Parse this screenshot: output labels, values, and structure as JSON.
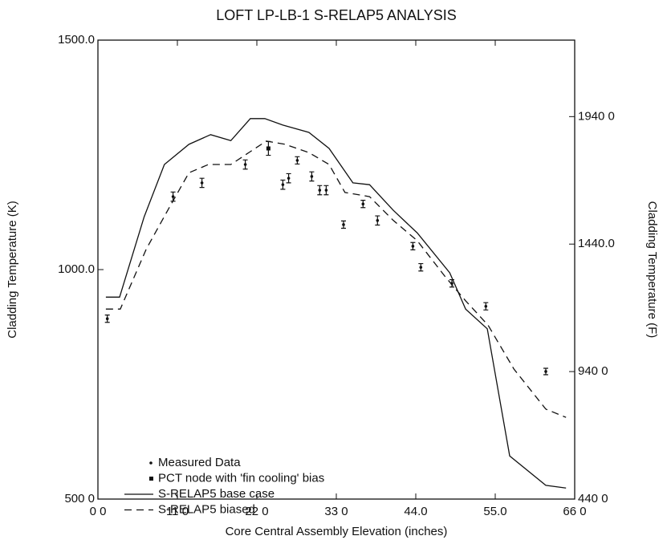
{
  "chart_data": {
    "type": "line",
    "title": "LOFT LP-LB-1 S-RELAP5 ANALYSIS",
    "xlabel": "Core Central Assembly Elevation (inches)",
    "ylabel": "Cladding Temperature (K)",
    "y2label": "Cladding Temperature (F)",
    "xlim": [
      0,
      66
    ],
    "ylim": [
      500,
      1500
    ],
    "y2lim": [
      440,
      2240
    ],
    "xticks": [
      {
        "value": 0,
        "label": "0 0"
      },
      {
        "value": 11,
        "label": "11 0"
      },
      {
        "value": 22,
        "label": "22 0"
      },
      {
        "value": 33,
        "label": "33 0"
      },
      {
        "value": 44,
        "label": "44.0"
      },
      {
        "value": 55,
        "label": "55.0"
      },
      {
        "value": 66,
        "label": "66 0"
      }
    ],
    "yticks": [
      {
        "value": 500,
        "label": "500 0"
      },
      {
        "value": 1000,
        "label": "1000.0"
      },
      {
        "value": 1500,
        "label": "1500.0"
      }
    ],
    "y2ticks": [
      {
        "value": 440,
        "label": "440 0"
      },
      {
        "value": 940,
        "label": "940 0"
      },
      {
        "value": 1440,
        "label": "1440.0"
      },
      {
        "value": 1940,
        "label": "1940 0"
      }
    ],
    "legend": "lower left",
    "series": [
      {
        "name": "Measured Data",
        "style": "errorbar",
        "color": "#111",
        "x": [
          1.3,
          10.4,
          14.4,
          20.4,
          25.6,
          26.4,
          27.6,
          29.6,
          30.7,
          31.6,
          34,
          36.7,
          38.7,
          43.6,
          44.7,
          49,
          53.7,
          62
        ],
        "values": [
          893,
          1159,
          1189,
          1229,
          1185,
          1199,
          1238,
          1203,
          1173,
          1173,
          1098,
          1143,
          1107,
          1051,
          1005,
          970,
          920,
          778
        ],
        "errors": [
          8,
          10,
          10,
          10,
          10,
          10,
          8,
          10,
          10,
          10,
          8,
          8,
          10,
          8,
          8,
          8,
          8,
          7
        ]
      },
      {
        "name": "PCT node with 'fin cooling' bias",
        "style": "square",
        "color": "#111",
        "x": [
          23.6
        ],
        "values": [
          1264
        ],
        "errors": [
          15
        ]
      },
      {
        "name": "S-RELAP5 base case",
        "style": "solid",
        "color": "#111",
        "x": [
          1.1,
          3,
          6.4,
          9.2,
          12.6,
          15.6,
          18.4,
          21.1,
          23.1,
          25.6,
          29.2,
          32,
          35.3,
          37.6,
          40.9,
          44.2,
          48.7,
          50.9,
          53.9,
          57,
          62,
          64.8
        ],
        "values": [
          940,
          940,
          1115,
          1229,
          1273,
          1294,
          1281,
          1329,
          1329,
          1315,
          1299,
          1264,
          1189,
          1185,
          1129,
          1080,
          993,
          914,
          871,
          594,
          530,
          524
        ]
      },
      {
        "name": "S-RELAP5 biased",
        "style": "dashed",
        "color": "#111",
        "x": [
          1.1,
          3.1,
          6.7,
          9.8,
          12.6,
          15.3,
          18.4,
          20.9,
          23.3,
          25.9,
          29.2,
          32,
          34.2,
          37.6,
          40.9,
          44.2,
          48.1,
          50.9,
          54,
          57.6,
          62,
          64.8
        ],
        "values": [
          914,
          914,
          1045,
          1133,
          1211,
          1229,
          1229,
          1255,
          1280,
          1273,
          1255,
          1229,
          1168,
          1159,
          1107,
          1063,
          984,
          932,
          879,
          783,
          696,
          678
        ]
      }
    ]
  }
}
